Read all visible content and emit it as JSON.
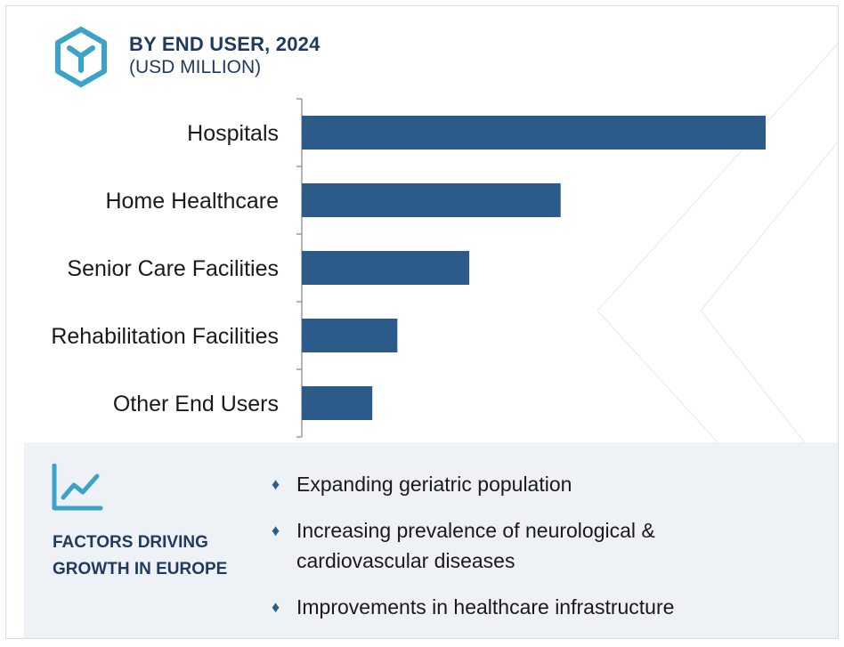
{
  "header": {
    "title": "BY END USER, 2024",
    "subtitle": "(USD MILLION)",
    "logo_icon": "hexagon-y-logo-icon"
  },
  "chart_data": {
    "type": "bar",
    "orientation": "horizontal",
    "title": "BY END USER, 2024",
    "subtitle": "(USD MILLION)",
    "categories": [
      "Hospitals",
      "Home Healthcare",
      "Senior Care Facilities",
      "Rehabilitation Facilities",
      "Other End Users"
    ],
    "values": [
      100,
      55.8,
      36.1,
      20.6,
      15.2
    ],
    "bar_color": "#2c5a89",
    "axis_visible": false,
    "grid": false
  },
  "factors": {
    "title": "FACTORS DRIVING GROWTH IN EUROPE",
    "icon": "trend-line-icon",
    "items": [
      "Expanding geriatric population",
      "Increasing prevalence of neurological & cardiovascular diseases",
      "Improvements in healthcare infrastructure"
    ],
    "bullet": "♦"
  },
  "colors": {
    "accent_teal": "#3aa3c7",
    "navy": "#1f3a5f",
    "bar": "#2c5a89",
    "panel_bg": "#eef1f6"
  }
}
